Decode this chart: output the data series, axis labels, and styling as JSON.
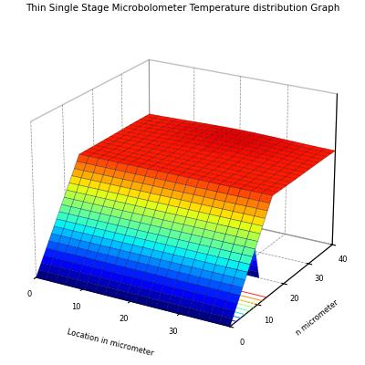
{
  "title": "Thin Single Stage Microbolometer Temperature distribution Graph",
  "xlabel": "Location in micrometer",
  "ylabel": "n micrometer",
  "elev": 22,
  "azim": -60,
  "figsize": [
    4.0,
    4.0
  ],
  "dpi": 100,
  "T_min": 270,
  "T_max": 320,
  "T_base": 314,
  "x_ticks": [
    0,
    10,
    20,
    30
  ],
  "y_ticks": [
    0,
    10,
    20,
    30,
    40
  ],
  "title_fontsize": 7.5
}
